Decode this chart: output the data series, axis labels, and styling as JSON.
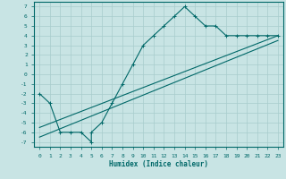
{
  "background_color": "#c8e4e4",
  "grid_color": "#a8cccc",
  "line_color": "#006868",
  "xlabel": "Humidex (Indice chaleur)",
  "xlim": [
    -0.5,
    23.5
  ],
  "ylim": [
    -7.5,
    7.5
  ],
  "xticks": [
    0,
    1,
    2,
    3,
    4,
    5,
    6,
    7,
    8,
    9,
    10,
    11,
    12,
    13,
    14,
    15,
    16,
    17,
    18,
    19,
    20,
    21,
    22,
    23
  ],
  "yticks": [
    -7,
    -6,
    -5,
    -4,
    -3,
    -2,
    -1,
    0,
    1,
    2,
    3,
    4,
    5,
    6,
    7
  ],
  "curve1_x": [
    0,
    1,
    2,
    3,
    4,
    5,
    5,
    6,
    7,
    8,
    9,
    10,
    11,
    12,
    13,
    14,
    15,
    16,
    17,
    18,
    19,
    20,
    21,
    22,
    23
  ],
  "curve1_y": [
    -2,
    -3,
    -6,
    -6,
    -6,
    -7,
    -6,
    -5,
    -3,
    -1,
    1,
    3,
    4,
    5,
    6,
    7,
    6,
    5,
    5,
    4,
    4,
    4,
    4,
    4,
    4
  ],
  "line2_x": [
    0,
    23
  ],
  "line2_y": [
    -5.5,
    4.0
  ],
  "line3_x": [
    0,
    23
  ],
  "line3_y": [
    -6.5,
    3.5
  ],
  "marker": "+"
}
